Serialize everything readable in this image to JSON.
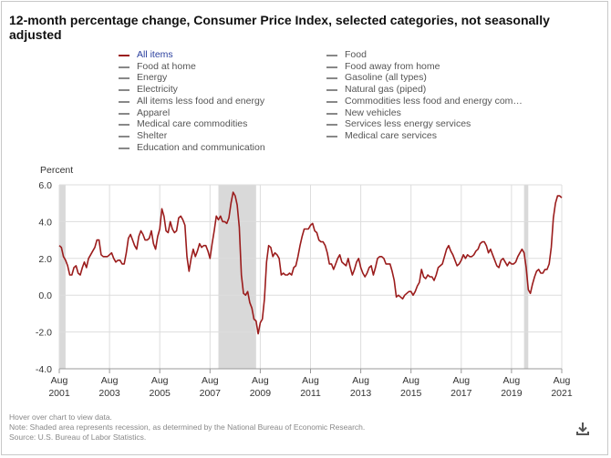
{
  "title": "12-month percentage change, Consumer Price Index, selected categories, not seasonally adjusted",
  "legend": {
    "left": [
      {
        "label": "All items",
        "active": true
      },
      {
        "label": "Food at home",
        "active": false
      },
      {
        "label": "Energy",
        "active": false
      },
      {
        "label": "Electricity",
        "active": false
      },
      {
        "label": "All items less food and energy",
        "active": false
      },
      {
        "label": "Apparel",
        "active": false
      },
      {
        "label": "Medical care commodities",
        "active": false
      },
      {
        "label": "Shelter",
        "active": false
      },
      {
        "label": "Education and communication",
        "active": false
      }
    ],
    "right": [
      {
        "label": "Food",
        "active": false
      },
      {
        "label": "Food away from home",
        "active": false
      },
      {
        "label": "Gasoline (all types)",
        "active": false
      },
      {
        "label": "Natural gas (piped)",
        "active": false
      },
      {
        "label": "Commodities less food and energy com…",
        "active": false
      },
      {
        "label": "New vehicles",
        "active": false
      },
      {
        "label": "Services less energy services",
        "active": false
      },
      {
        "label": "Medical care services",
        "active": false
      }
    ]
  },
  "notes": {
    "hover": "Hover over chart to view data.",
    "shaded": "Note: Shaded area represents recession, as determined by the National Bureau of Economic Research.",
    "source": "Source: U.S. Bureau of Labor Statistics."
  },
  "colors": {
    "series": "#9b1c1c",
    "recession": "#d9d9d9",
    "grid": "#dddddd",
    "active_label": "#2a3f9e"
  },
  "icons": {
    "download": "download-icon"
  },
  "chart_data": {
    "type": "line",
    "title": "12-month percentage change, Consumer Price Index, selected categories, not seasonally adjusted",
    "xlabel": "",
    "ylabel": "Percent",
    "ylim": [
      -4,
      6
    ],
    "xlim": [
      "2001-08",
      "2021-08"
    ],
    "yticks": [
      {
        "value": -4,
        "label": "-4.0"
      },
      {
        "value": -2,
        "label": "-2.0"
      },
      {
        "value": 0,
        "label": "0.0"
      },
      {
        "value": 2,
        "label": "2.0"
      },
      {
        "value": 4,
        "label": "4.0"
      },
      {
        "value": 6,
        "label": "6.0"
      }
    ],
    "xticks": [
      {
        "date": "2001-08",
        "label1": "Aug",
        "label2": "2001"
      },
      {
        "date": "2003-08",
        "label1": "Aug",
        "label2": "2003"
      },
      {
        "date": "2005-08",
        "label1": "Aug",
        "label2": "2005"
      },
      {
        "date": "2007-08",
        "label1": "Aug",
        "label2": "2007"
      },
      {
        "date": "2009-08",
        "label1": "Aug",
        "label2": "2009"
      },
      {
        "date": "2011-08",
        "label1": "Aug",
        "label2": "2011"
      },
      {
        "date": "2013-08",
        "label1": "Aug",
        "label2": "2013"
      },
      {
        "date": "2015-08",
        "label1": "Aug",
        "label2": "2015"
      },
      {
        "date": "2017-08",
        "label1": "Aug",
        "label2": "2017"
      },
      {
        "date": "2019-08",
        "label1": "Aug",
        "label2": "2019"
      },
      {
        "date": "2021-08",
        "label1": "Aug",
        "label2": "2021"
      }
    ],
    "grid": true,
    "recessions": [
      {
        "start": "2001-08",
        "end": "2001-11"
      },
      {
        "start": "2007-12",
        "end": "2009-06"
      },
      {
        "start": "2020-02",
        "end": "2020-04"
      }
    ],
    "series": [
      {
        "name": "All items",
        "points": [
          [
            "2001-08",
            2.7
          ],
          [
            "2001-09",
            2.6
          ],
          [
            "2001-10",
            2.1
          ],
          [
            "2001-11",
            1.9
          ],
          [
            "2001-12",
            1.6
          ],
          [
            "2002-01",
            1.1
          ],
          [
            "2002-02",
            1.1
          ],
          [
            "2002-03",
            1.5
          ],
          [
            "2002-04",
            1.6
          ],
          [
            "2002-05",
            1.2
          ],
          [
            "2002-06",
            1.1
          ],
          [
            "2002-07",
            1.5
          ],
          [
            "2002-08",
            1.8
          ],
          [
            "2002-09",
            1.5
          ],
          [
            "2002-10",
            2.0
          ],
          [
            "2002-11",
            2.2
          ],
          [
            "2002-12",
            2.4
          ],
          [
            "2003-01",
            2.6
          ],
          [
            "2003-02",
            3.0
          ],
          [
            "2003-03",
            3.0
          ],
          [
            "2003-04",
            2.2
          ],
          [
            "2003-05",
            2.1
          ],
          [
            "2003-06",
            2.1
          ],
          [
            "2003-07",
            2.1
          ],
          [
            "2003-08",
            2.2
          ],
          [
            "2003-09",
            2.3
          ],
          [
            "2003-10",
            2.0
          ],
          [
            "2003-11",
            1.8
          ],
          [
            "2003-12",
            1.9
          ],
          [
            "2004-01",
            1.9
          ],
          [
            "2004-02",
            1.7
          ],
          [
            "2004-03",
            1.7
          ],
          [
            "2004-04",
            2.3
          ],
          [
            "2004-05",
            3.1
          ],
          [
            "2004-06",
            3.3
          ],
          [
            "2004-07",
            3.0
          ],
          [
            "2004-08",
            2.7
          ],
          [
            "2004-09",
            2.5
          ],
          [
            "2004-10",
            3.2
          ],
          [
            "2004-11",
            3.5
          ],
          [
            "2004-12",
            3.3
          ],
          [
            "2005-01",
            3.0
          ],
          [
            "2005-02",
            3.0
          ],
          [
            "2005-03",
            3.1
          ],
          [
            "2005-04",
            3.5
          ],
          [
            "2005-05",
            2.8
          ],
          [
            "2005-06",
            2.5
          ],
          [
            "2005-07",
            3.2
          ],
          [
            "2005-08",
            3.6
          ],
          [
            "2005-09",
            4.7
          ],
          [
            "2005-10",
            4.3
          ],
          [
            "2005-11",
            3.5
          ],
          [
            "2005-12",
            3.4
          ],
          [
            "2006-01",
            4.0
          ],
          [
            "2006-02",
            3.6
          ],
          [
            "2006-03",
            3.4
          ],
          [
            "2006-04",
            3.5
          ],
          [
            "2006-05",
            4.2
          ],
          [
            "2006-06",
            4.3
          ],
          [
            "2006-07",
            4.1
          ],
          [
            "2006-08",
            3.8
          ],
          [
            "2006-09",
            2.1
          ],
          [
            "2006-10",
            1.3
          ],
          [
            "2006-11",
            2.0
          ],
          [
            "2006-12",
            2.5
          ],
          [
            "2007-01",
            2.1
          ],
          [
            "2007-02",
            2.4
          ],
          [
            "2007-03",
            2.8
          ],
          [
            "2007-04",
            2.6
          ],
          [
            "2007-05",
            2.7
          ],
          [
            "2007-06",
            2.7
          ],
          [
            "2007-07",
            2.4
          ],
          [
            "2007-08",
            2.0
          ],
          [
            "2007-09",
            2.8
          ],
          [
            "2007-10",
            3.5
          ],
          [
            "2007-11",
            4.3
          ],
          [
            "2007-12",
            4.1
          ],
          [
            "2008-01",
            4.3
          ],
          [
            "2008-02",
            4.0
          ],
          [
            "2008-03",
            4.0
          ],
          [
            "2008-04",
            3.9
          ],
          [
            "2008-05",
            4.2
          ],
          [
            "2008-06",
            5.0
          ],
          [
            "2008-07",
            5.6
          ],
          [
            "2008-08",
            5.4
          ],
          [
            "2008-09",
            4.9
          ],
          [
            "2008-10",
            3.7
          ],
          [
            "2008-11",
            1.1
          ],
          [
            "2008-12",
            0.1
          ],
          [
            "2009-01",
            0.0
          ],
          [
            "2009-02",
            0.2
          ],
          [
            "2009-03",
            -0.4
          ],
          [
            "2009-04",
            -0.7
          ],
          [
            "2009-05",
            -1.3
          ],
          [
            "2009-06",
            -1.4
          ],
          [
            "2009-07",
            -2.1
          ],
          [
            "2009-08",
            -1.5
          ],
          [
            "2009-09",
            -1.3
          ],
          [
            "2009-10",
            -0.2
          ],
          [
            "2009-11",
            1.8
          ],
          [
            "2009-12",
            2.7
          ],
          [
            "2010-01",
            2.6
          ],
          [
            "2010-02",
            2.1
          ],
          [
            "2010-03",
            2.3
          ],
          [
            "2010-04",
            2.2
          ],
          [
            "2010-05",
            2.0
          ],
          [
            "2010-06",
            1.1
          ],
          [
            "2010-07",
            1.2
          ],
          [
            "2010-08",
            1.1
          ],
          [
            "2010-09",
            1.1
          ],
          [
            "2010-10",
            1.2
          ],
          [
            "2010-11",
            1.1
          ],
          [
            "2010-12",
            1.5
          ],
          [
            "2011-01",
            1.6
          ],
          [
            "2011-02",
            2.1
          ],
          [
            "2011-03",
            2.7
          ],
          [
            "2011-04",
            3.2
          ],
          [
            "2011-05",
            3.6
          ],
          [
            "2011-06",
            3.6
          ],
          [
            "2011-07",
            3.6
          ],
          [
            "2011-08",
            3.8
          ],
          [
            "2011-09",
            3.9
          ],
          [
            "2011-10",
            3.5
          ],
          [
            "2011-11",
            3.4
          ],
          [
            "2011-12",
            3.0
          ],
          [
            "2012-01",
            2.9
          ],
          [
            "2012-02",
            2.9
          ],
          [
            "2012-03",
            2.7
          ],
          [
            "2012-04",
            2.3
          ],
          [
            "2012-05",
            1.7
          ],
          [
            "2012-06",
            1.7
          ],
          [
            "2012-07",
            1.4
          ],
          [
            "2012-08",
            1.7
          ],
          [
            "2012-09",
            2.0
          ],
          [
            "2012-10",
            2.2
          ],
          [
            "2012-11",
            1.8
          ],
          [
            "2012-12",
            1.7
          ],
          [
            "2013-01",
            1.6
          ],
          [
            "2013-02",
            2.0
          ],
          [
            "2013-03",
            1.5
          ],
          [
            "2013-04",
            1.1
          ],
          [
            "2013-05",
            1.4
          ],
          [
            "2013-06",
            1.8
          ],
          [
            "2013-07",
            2.0
          ],
          [
            "2013-08",
            1.5
          ],
          [
            "2013-09",
            1.2
          ],
          [
            "2013-10",
            1.0
          ],
          [
            "2013-11",
            1.2
          ],
          [
            "2013-12",
            1.5
          ],
          [
            "2014-01",
            1.6
          ],
          [
            "2014-02",
            1.1
          ],
          [
            "2014-03",
            1.5
          ],
          [
            "2014-04",
            2.0
          ],
          [
            "2014-05",
            2.1
          ],
          [
            "2014-06",
            2.1
          ],
          [
            "2014-07",
            2.0
          ],
          [
            "2014-08",
            1.7
          ],
          [
            "2014-09",
            1.7
          ],
          [
            "2014-10",
            1.7
          ],
          [
            "2014-11",
            1.3
          ],
          [
            "2014-12",
            0.8
          ],
          [
            "2015-01",
            -0.1
          ],
          [
            "2015-02",
            0.0
          ],
          [
            "2015-03",
            -0.1
          ],
          [
            "2015-04",
            -0.2
          ],
          [
            "2015-05",
            0.0
          ],
          [
            "2015-06",
            0.1
          ],
          [
            "2015-07",
            0.2
          ],
          [
            "2015-08",
            0.2
          ],
          [
            "2015-09",
            0.0
          ],
          [
            "2015-10",
            0.2
          ],
          [
            "2015-11",
            0.5
          ],
          [
            "2015-12",
            0.7
          ],
          [
            "2016-01",
            1.4
          ],
          [
            "2016-02",
            1.0
          ],
          [
            "2016-03",
            0.9
          ],
          [
            "2016-04",
            1.1
          ],
          [
            "2016-05",
            1.0
          ],
          [
            "2016-06",
            1.0
          ],
          [
            "2016-07",
            0.8
          ],
          [
            "2016-08",
            1.1
          ],
          [
            "2016-09",
            1.5
          ],
          [
            "2016-10",
            1.6
          ],
          [
            "2016-11",
            1.7
          ],
          [
            "2016-12",
            2.1
          ],
          [
            "2017-01",
            2.5
          ],
          [
            "2017-02",
            2.7
          ],
          [
            "2017-03",
            2.4
          ],
          [
            "2017-04",
            2.2
          ],
          [
            "2017-05",
            1.9
          ],
          [
            "2017-06",
            1.6
          ],
          [
            "2017-07",
            1.7
          ],
          [
            "2017-08",
            1.9
          ],
          [
            "2017-09",
            2.2
          ],
          [
            "2017-10",
            2.0
          ],
          [
            "2017-11",
            2.2
          ],
          [
            "2017-12",
            2.1
          ],
          [
            "2018-01",
            2.1
          ],
          [
            "2018-02",
            2.2
          ],
          [
            "2018-03",
            2.4
          ],
          [
            "2018-04",
            2.5
          ],
          [
            "2018-05",
            2.8
          ],
          [
            "2018-06",
            2.9
          ],
          [
            "2018-07",
            2.9
          ],
          [
            "2018-08",
            2.7
          ],
          [
            "2018-09",
            2.3
          ],
          [
            "2018-10",
            2.5
          ],
          [
            "2018-11",
            2.2
          ],
          [
            "2018-12",
            1.9
          ],
          [
            "2019-01",
            1.6
          ],
          [
            "2019-02",
            1.5
          ],
          [
            "2019-03",
            1.9
          ],
          [
            "2019-04",
            2.0
          ],
          [
            "2019-05",
            1.8
          ],
          [
            "2019-06",
            1.6
          ],
          [
            "2019-07",
            1.8
          ],
          [
            "2019-08",
            1.7
          ],
          [
            "2019-09",
            1.7
          ],
          [
            "2019-10",
            1.8
          ],
          [
            "2019-11",
            2.1
          ],
          [
            "2019-12",
            2.3
          ],
          [
            "2020-01",
            2.5
          ],
          [
            "2020-02",
            2.3
          ],
          [
            "2020-03",
            1.5
          ],
          [
            "2020-04",
            0.3
          ],
          [
            "2020-05",
            0.1
          ],
          [
            "2020-06",
            0.6
          ],
          [
            "2020-07",
            1.0
          ],
          [
            "2020-08",
            1.3
          ],
          [
            "2020-09",
            1.4
          ],
          [
            "2020-10",
            1.2
          ],
          [
            "2020-11",
            1.2
          ],
          [
            "2020-12",
            1.4
          ],
          [
            "2021-01",
            1.4
          ],
          [
            "2021-02",
            1.7
          ],
          [
            "2021-03",
            2.6
          ],
          [
            "2021-04",
            4.2
          ],
          [
            "2021-05",
            5.0
          ],
          [
            "2021-06",
            5.4
          ],
          [
            "2021-07",
            5.4
          ],
          [
            "2021-08",
            5.3
          ]
        ]
      }
    ]
  }
}
